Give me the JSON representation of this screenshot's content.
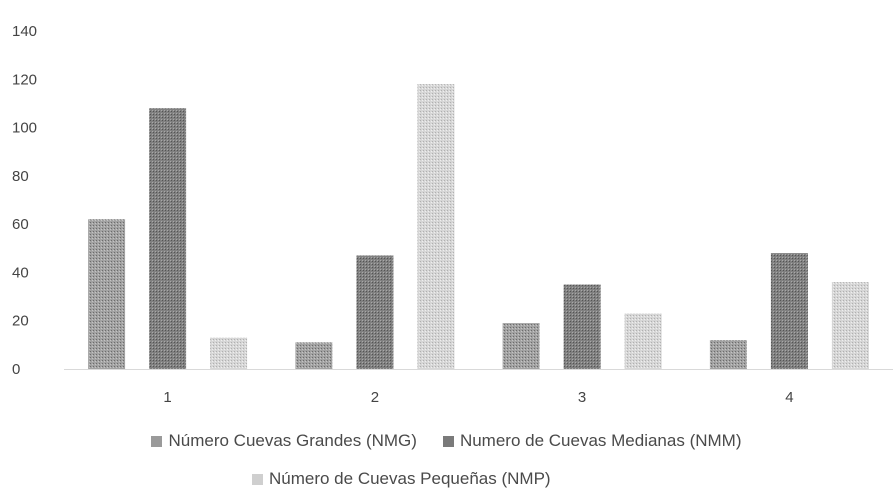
{
  "chart_data": {
    "type": "bar",
    "categories": [
      "1",
      "2",
      "3",
      "4"
    ],
    "series": [
      {
        "name": "Número Cuevas Grandes (NMG)",
        "values": [
          62,
          11,
          19,
          12
        ],
        "color": "#9a9a9a"
      },
      {
        "name": "Numero de Cuevas Medianas (NMM)",
        "values": [
          108,
          47,
          35,
          48
        ],
        "color": "#7a7a7a"
      },
      {
        "name": "Número de Cuevas Pequeñas (NMP)",
        "values": [
          13,
          118,
          23,
          36
        ],
        "color": "#cfcfcf"
      }
    ],
    "y_ticks": [
      "0",
      "20",
      "40",
      "60",
      "80",
      "100",
      "120",
      "140"
    ],
    "ylim": [
      0,
      140
    ],
    "grid": false,
    "legend_position": "bottom"
  }
}
